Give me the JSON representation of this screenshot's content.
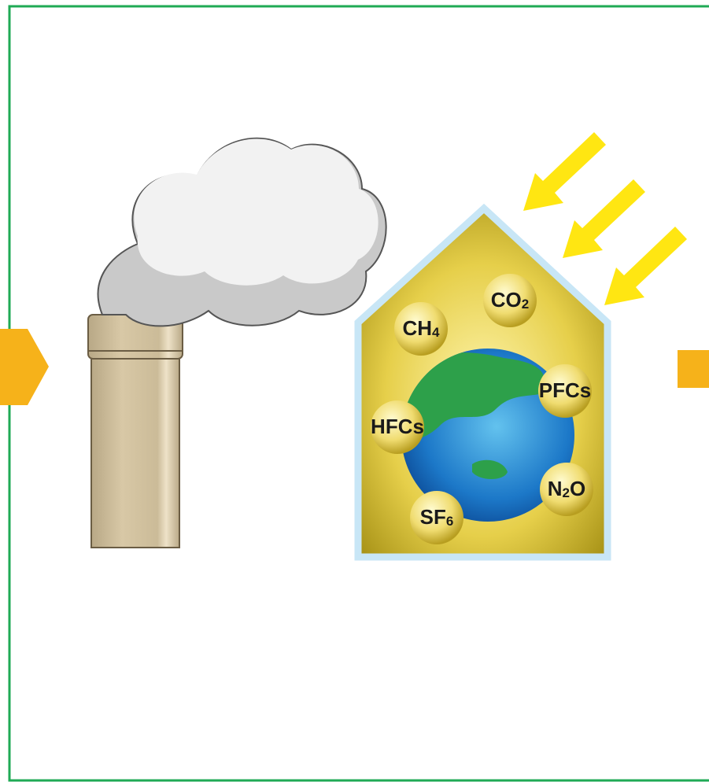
{
  "gases": [
    {
      "label": "CO2"
    },
    {
      "label": "CH4"
    },
    {
      "label": "PFCs"
    },
    {
      "label": "HFCs"
    },
    {
      "label": "N2O"
    },
    {
      "label": "SF6"
    }
  ]
}
